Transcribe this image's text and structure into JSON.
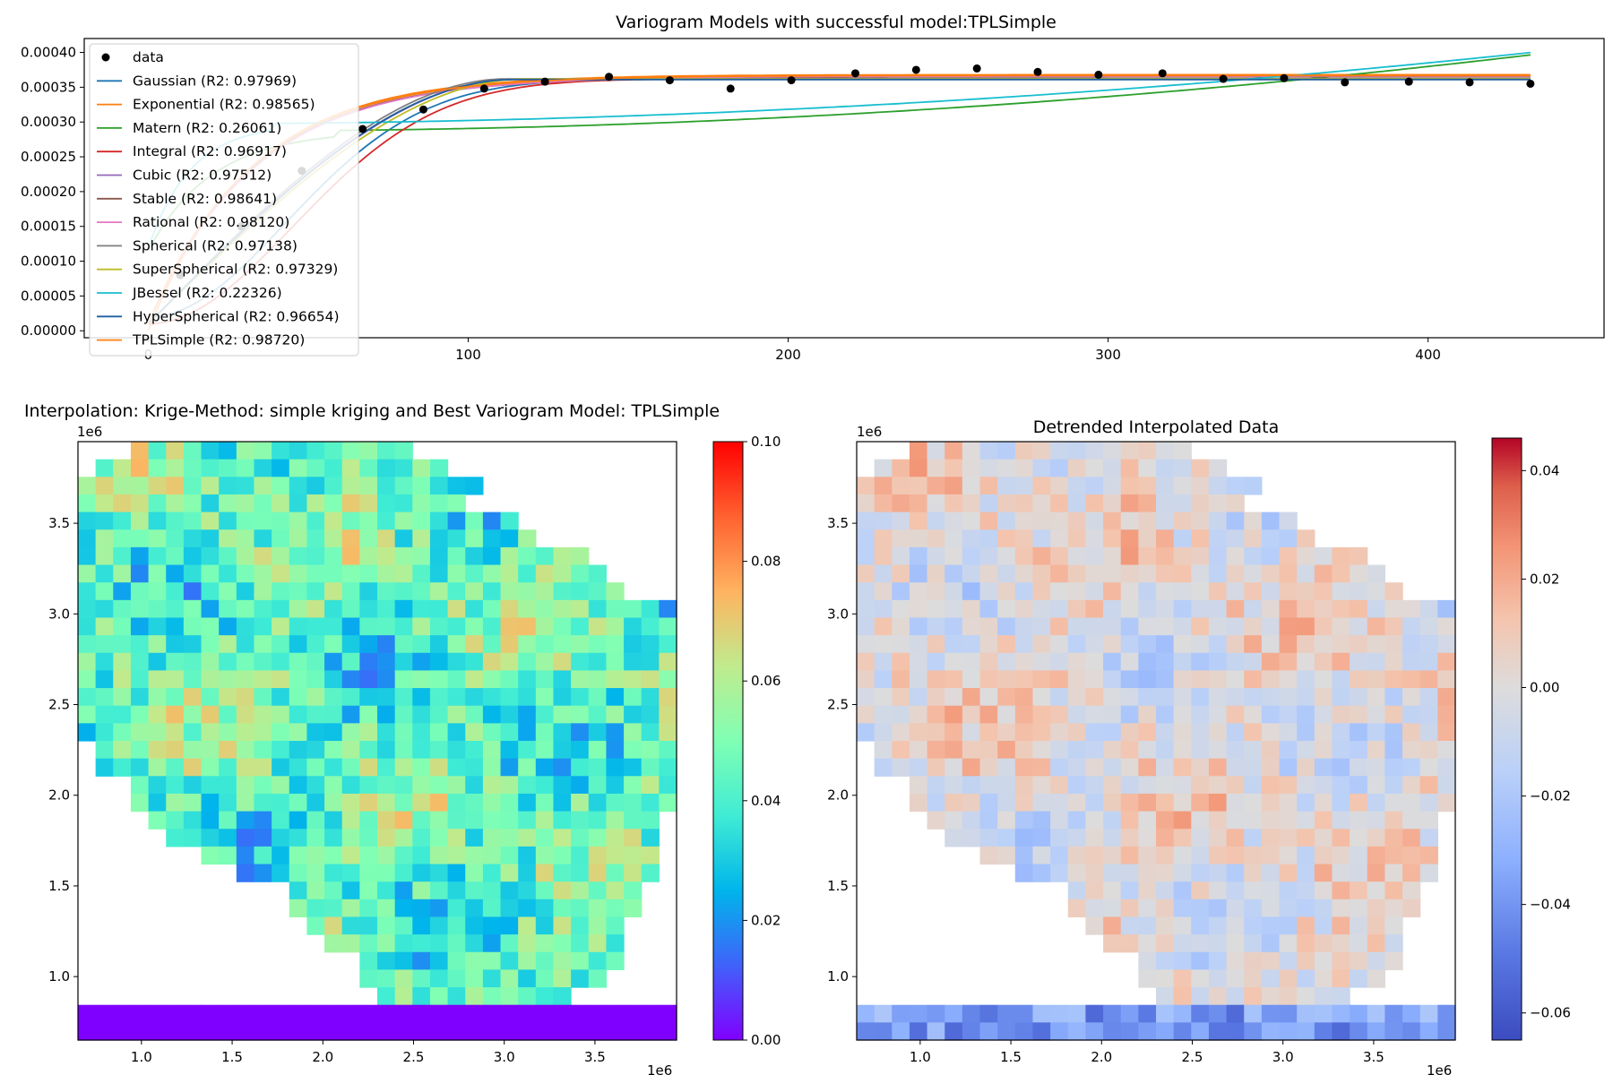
{
  "chart_data": [
    {
      "type": "scatter+line",
      "title": "Variogram Models with successful model:TPLSimple",
      "xlabel": "",
      "ylabel": "",
      "xlim": [
        -20,
        455
      ],
      "ylim": [
        -1e-05,
        0.00042
      ],
      "xticks": [
        0,
        100,
        200,
        300,
        400
      ],
      "yticks": [
        0.0,
        5e-05,
        0.0001,
        0.00015,
        0.0002,
        0.00025,
        0.0003,
        0.00035,
        0.0004
      ],
      "ytick_labels": [
        "0.00000",
        "0.00005",
        "0.00010",
        "0.00015",
        "0.00020",
        "0.00025",
        "0.00030",
        "0.00035",
        "0.00040"
      ],
      "legend_placement": "upper-left",
      "data_label": "data",
      "points": {
        "x": [
          10,
          29,
          48,
          67,
          86,
          105,
          124,
          144,
          163,
          182,
          201,
          221,
          240,
          259,
          278,
          297,
          317,
          336,
          355,
          374,
          394,
          413,
          432
        ],
        "y": [
          8e-05,
          0.00015,
          0.00023,
          0.00029,
          0.000318,
          0.000348,
          0.000358,
          0.000365,
          0.00036,
          0.000348,
          0.00036,
          0.00037,
          0.000375,
          0.000377,
          0.000372,
          0.000368,
          0.00037,
          0.000362,
          0.000363,
          0.000357,
          0.000358,
          0.000357,
          0.000355
        ]
      },
      "series": [
        {
          "name": "Gaussian (R2: 0.97969)",
          "color": "#1f77b4",
          "model": "gaussian",
          "sill": 0.000362,
          "range": 105,
          "nugget": 2e-05
        },
        {
          "name": "Exponential (R2: 0.98565)",
          "color": "#ff7f0e",
          "model": "exponential",
          "sill": 0.000368,
          "range": 95,
          "nugget": 0.0
        },
        {
          "name": "Matern (R2: 0.26061)",
          "color": "#2ca02c",
          "model": "linear_tail",
          "a": 0.000288,
          "b": 2.7e-07,
          "start": 60
        },
        {
          "name": "Integral (R2: 0.96917)",
          "color": "#d62728",
          "model": "gaussian",
          "sill": 0.000362,
          "range": 110,
          "nugget": 1e-05
        },
        {
          "name": "Cubic (R2: 0.97512)",
          "color": "#9467bd",
          "model": "cubic",
          "sill": 0.000362,
          "range": 115,
          "nugget": 1e-05
        },
        {
          "name": "Stable (R2: 0.98641)",
          "color": "#8c564b",
          "model": "exponential",
          "sill": 0.000365,
          "range": 98,
          "nugget": 1e-05
        },
        {
          "name": "Rational (R2: 0.98120)",
          "color": "#e377c2",
          "model": "exponential",
          "sill": 0.000366,
          "range": 100,
          "nugget": 1e-05
        },
        {
          "name": "Spherical (R2: 0.97138)",
          "color": "#7f7f7f",
          "model": "spherical",
          "sill": 0.000362,
          "range": 112,
          "nugget": 1e-05
        },
        {
          "name": "SuperSpherical (R2: 0.97329)",
          "color": "#bcbd22",
          "model": "spherical",
          "sill": 0.000362,
          "range": 118,
          "nugget": 1e-05
        },
        {
          "name": "JBessel (R2: 0.22326)",
          "color": "#17becf",
          "model": "linear_tail",
          "a": 0.000298,
          "b": 2.3e-07,
          "start": 40
        },
        {
          "name": "HyperSpherical (R2: 0.96654)",
          "color": "#1f5f9f",
          "model": "spherical",
          "sill": 0.000361,
          "range": 114,
          "nugget": 1e-05
        },
        {
          "name": "TPLSimple (R2: 0.98720)",
          "color": "#ff7f0e",
          "model": "exponential",
          "sill": 0.000367,
          "range": 97,
          "nugget": 1e-05
        }
      ]
    },
    {
      "type": "heatmap",
      "title": "Interpolation: Krige-Method: simple kriging and Best Variogram Model: TPLSimple",
      "colormap": "rainbow",
      "x_offset_label": "1e6",
      "y_offset_label": "1e6",
      "xticks": [
        1.0,
        1.5,
        2.0,
        2.5,
        3.0,
        3.5
      ],
      "yticks": [
        1.0,
        1.5,
        2.0,
        2.5,
        3.0,
        3.5
      ],
      "colorbar_range": [
        0.0,
        0.1
      ],
      "colorbar_ticks": [
        "0.00",
        "0.02",
        "0.04",
        "0.06",
        "0.08",
        "0.10"
      ],
      "seed": 7,
      "center": 0.045,
      "amplitude": 0.05
    },
    {
      "type": "heatmap",
      "title": "Detrended Interpolated Data",
      "colormap": "coolwarm",
      "x_offset_label": "1e6",
      "y_offset_label": "1e6",
      "xticks": [
        1.0,
        1.5,
        2.0,
        2.5,
        3.0,
        3.5
      ],
      "yticks": [
        1.0,
        1.5,
        2.0,
        2.5,
        3.0,
        3.5
      ],
      "colorbar_range": [
        -0.065,
        0.046
      ],
      "colorbar_ticks": [
        "−0.06",
        "−0.04",
        "−0.02",
        "0.00",
        "0.02",
        "0.04"
      ],
      "colorbar_tick_values": [
        -0.06,
        -0.04,
        -0.02,
        0.0,
        0.02,
        0.04
      ],
      "seed": 7,
      "center": 0.0,
      "amplitude": 0.05
    }
  ],
  "labels": {
    "top_title": "Variogram Models with successful model:TPLSimple",
    "left_title": "Interpolation: Krige-Method: simple kriging and Best Variogram Model: TPLSimple",
    "right_title": "Detrended Interpolated Data",
    "offset": "1e6",
    "legend_data": "data"
  }
}
